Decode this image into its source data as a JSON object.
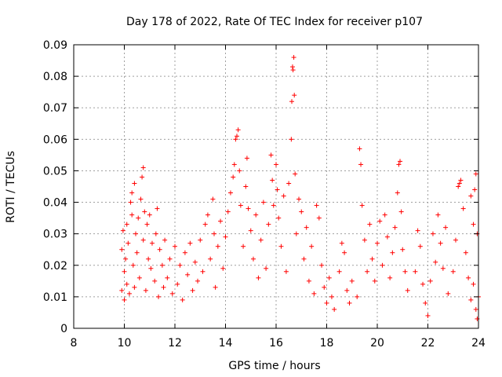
{
  "chart_data": {
    "type": "scatter",
    "title": "Day 178 of 2022, Rate Of TEC Index for receiver p107",
    "xlabel": "GPS time / hours",
    "ylabel": "ROTI / TECUs",
    "xlim": [
      8,
      24
    ],
    "ylim": [
      0,
      0.09
    ],
    "xticks": [
      8,
      10,
      12,
      14,
      16,
      18,
      20,
      22,
      24
    ],
    "yticks": [
      0,
      0.01,
      0.02,
      0.03,
      0.04,
      0.05,
      0.06,
      0.07,
      0.08,
      0.09
    ],
    "ytick_labels": [
      "0",
      "0.01",
      "0.02",
      "0.03",
      "0.04",
      "0.05",
      "0.06",
      "0.07",
      "0.08",
      "0.09"
    ],
    "grid": true,
    "marker": "+",
    "color": "#ff0000",
    "points": [
      [
        9.9,
        0.012
      ],
      [
        9.9,
        0.025
      ],
      [
        9.95,
        0.031
      ],
      [
        10.0,
        0.018
      ],
      [
        10.0,
        0.009
      ],
      [
        10.05,
        0.022
      ],
      [
        10.1,
        0.014
      ],
      [
        10.1,
        0.033
      ],
      [
        10.15,
        0.027
      ],
      [
        10.2,
        0.011
      ],
      [
        10.25,
        0.04
      ],
      [
        10.3,
        0.043
      ],
      [
        10.3,
        0.036
      ],
      [
        10.35,
        0.02
      ],
      [
        10.4,
        0.046
      ],
      [
        10.4,
        0.013
      ],
      [
        10.45,
        0.03
      ],
      [
        10.5,
        0.024
      ],
      [
        10.55,
        0.035
      ],
      [
        10.6,
        0.016
      ],
      [
        10.65,
        0.041
      ],
      [
        10.7,
        0.048
      ],
      [
        10.75,
        0.051
      ],
      [
        10.75,
        0.028
      ],
      [
        10.8,
        0.037
      ],
      [
        10.85,
        0.012
      ],
      [
        10.9,
        0.033
      ],
      [
        10.95,
        0.022
      ],
      [
        11.0,
        0.036
      ],
      [
        11.05,
        0.019
      ],
      [
        11.1,
        0.027
      ],
      [
        11.2,
        0.015
      ],
      [
        11.25,
        0.03
      ],
      [
        11.3,
        0.038
      ],
      [
        11.35,
        0.01
      ],
      [
        11.4,
        0.025
      ],
      [
        11.5,
        0.02
      ],
      [
        11.55,
        0.013
      ],
      [
        11.6,
        0.028
      ],
      [
        11.7,
        0.016
      ],
      [
        11.8,
        0.022
      ],
      [
        11.9,
        0.011
      ],
      [
        12.0,
        0.026
      ],
      [
        12.1,
        0.014
      ],
      [
        12.2,
        0.02
      ],
      [
        12.3,
        0.009
      ],
      [
        12.4,
        0.024
      ],
      [
        12.5,
        0.017
      ],
      [
        12.6,
        0.027
      ],
      [
        12.7,
        0.012
      ],
      [
        12.8,
        0.021
      ],
      [
        12.9,
        0.015
      ],
      [
        13.0,
        0.028
      ],
      [
        13.1,
        0.018
      ],
      [
        13.2,
        0.033
      ],
      [
        13.3,
        0.036
      ],
      [
        13.4,
        0.022
      ],
      [
        13.5,
        0.041
      ],
      [
        13.55,
        0.03
      ],
      [
        13.6,
        0.013
      ],
      [
        13.7,
        0.026
      ],
      [
        13.8,
        0.034
      ],
      [
        13.9,
        0.019
      ],
      [
        14.0,
        0.029
      ],
      [
        14.1,
        0.037
      ],
      [
        14.2,
        0.043
      ],
      [
        14.3,
        0.048
      ],
      [
        14.35,
        0.052
      ],
      [
        14.4,
        0.06
      ],
      [
        14.45,
        0.061
      ],
      [
        14.5,
        0.063
      ],
      [
        14.55,
        0.05
      ],
      [
        14.6,
        0.039
      ],
      [
        14.7,
        0.026
      ],
      [
        14.8,
        0.045
      ],
      [
        14.85,
        0.054
      ],
      [
        14.9,
        0.038
      ],
      [
        15.0,
        0.031
      ],
      [
        15.1,
        0.022
      ],
      [
        15.2,
        0.036
      ],
      [
        15.3,
        0.016
      ],
      [
        15.4,
        0.028
      ],
      [
        15.5,
        0.04
      ],
      [
        15.6,
        0.019
      ],
      [
        15.7,
        0.033
      ],
      [
        15.8,
        0.055
      ],
      [
        15.85,
        0.047
      ],
      [
        15.9,
        0.039
      ],
      [
        16.0,
        0.052
      ],
      [
        16.05,
        0.044
      ],
      [
        16.1,
        0.035
      ],
      [
        16.2,
        0.026
      ],
      [
        16.3,
        0.042
      ],
      [
        16.4,
        0.018
      ],
      [
        16.5,
        0.046
      ],
      [
        16.6,
        0.06
      ],
      [
        16.62,
        0.072
      ],
      [
        16.65,
        0.083
      ],
      [
        16.67,
        0.082
      ],
      [
        16.7,
        0.086
      ],
      [
        16.72,
        0.074
      ],
      [
        16.75,
        0.049
      ],
      [
        16.8,
        0.03
      ],
      [
        16.9,
        0.041
      ],
      [
        17.0,
        0.037
      ],
      [
        17.1,
        0.022
      ],
      [
        17.2,
        0.032
      ],
      [
        17.3,
        0.015
      ],
      [
        17.4,
        0.026
      ],
      [
        17.5,
        0.011
      ],
      [
        17.6,
        0.039
      ],
      [
        17.7,
        0.035
      ],
      [
        17.8,
        0.02
      ],
      [
        17.9,
        0.013
      ],
      [
        18.0,
        0.008
      ],
      [
        18.1,
        0.016
      ],
      [
        18.2,
        0.01
      ],
      [
        18.3,
        0.006
      ],
      [
        18.5,
        0.018
      ],
      [
        18.6,
        0.027
      ],
      [
        18.7,
        0.024
      ],
      [
        18.8,
        0.012
      ],
      [
        18.9,
        0.008
      ],
      [
        19.0,
        0.015
      ],
      [
        19.2,
        0.01
      ],
      [
        19.3,
        0.057
      ],
      [
        19.35,
        0.052
      ],
      [
        19.4,
        0.039
      ],
      [
        19.5,
        0.028
      ],
      [
        19.6,
        0.018
      ],
      [
        19.7,
        0.033
      ],
      [
        19.8,
        0.022
      ],
      [
        19.9,
        0.015
      ],
      [
        20.0,
        0.027
      ],
      [
        20.1,
        0.034
      ],
      [
        20.2,
        0.02
      ],
      [
        20.3,
        0.036
      ],
      [
        20.4,
        0.029
      ],
      [
        20.5,
        0.016
      ],
      [
        20.6,
        0.024
      ],
      [
        20.7,
        0.032
      ],
      [
        20.8,
        0.043
      ],
      [
        20.85,
        0.052
      ],
      [
        20.9,
        0.053
      ],
      [
        20.95,
        0.037
      ],
      [
        21.0,
        0.025
      ],
      [
        21.1,
        0.018
      ],
      [
        21.2,
        0.012
      ],
      [
        21.5,
        0.018
      ],
      [
        21.6,
        0.031
      ],
      [
        21.7,
        0.026
      ],
      [
        21.8,
        0.014
      ],
      [
        21.9,
        0.008
      ],
      [
        22.0,
        0.004
      ],
      [
        22.1,
        0.015
      ],
      [
        22.2,
        0.03
      ],
      [
        22.3,
        0.021
      ],
      [
        22.4,
        0.036
      ],
      [
        22.5,
        0.027
      ],
      [
        22.6,
        0.019
      ],
      [
        22.7,
        0.032
      ],
      [
        22.8,
        0.011
      ],
      [
        23.0,
        0.018
      ],
      [
        23.1,
        0.028
      ],
      [
        23.2,
        0.045
      ],
      [
        23.25,
        0.046
      ],
      [
        23.3,
        0.047
      ],
      [
        23.4,
        0.038
      ],
      [
        23.5,
        0.024
      ],
      [
        23.6,
        0.016
      ],
      [
        23.7,
        0.042
      ],
      [
        23.8,
        0.033
      ],
      [
        23.85,
        0.044
      ],
      [
        23.9,
        0.049
      ],
      [
        23.95,
        0.03
      ],
      [
        24.0,
        0.01
      ],
      [
        23.95,
        0.003
      ],
      [
        23.9,
        0.006
      ],
      [
        23.8,
        0.014
      ],
      [
        23.7,
        0.009
      ]
    ]
  }
}
